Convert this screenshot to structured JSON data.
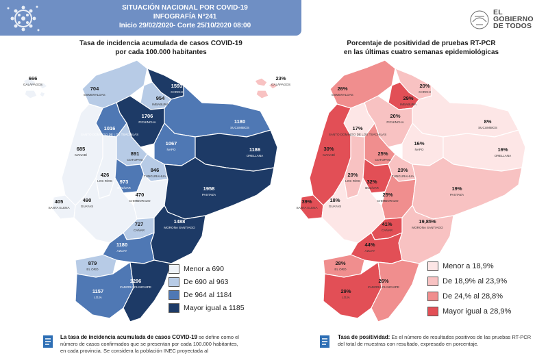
{
  "header": {
    "line1": "SITUACIÓN NACIONAL POR  COVID-19",
    "line2": "INFOGRAFÍA N°241",
    "line3": "Inicio 29/02/2020- Corte 25/10/2020 08:00"
  },
  "logo": {
    "line1": "EL",
    "line2": "GOBIERNO",
    "line3": "DE TODOS"
  },
  "left_map": {
    "title_line1": "Tasa de incidencia acumulada de casos COVID-19",
    "title_line2": "por cada 100.000 habitantes",
    "legend": [
      {
        "label": "Menor a 690",
        "color": "#eef2f8"
      },
      {
        "label": "De 690 al 963",
        "color": "#b7cbe6"
      },
      {
        "label": "De 964 al 1184",
        "color": "#4f78b4"
      },
      {
        "label": "Mayor igual a 1185",
        "color": "#1d3a66"
      }
    ],
    "regions": [
      {
        "name": "GALÁPAGOS",
        "value": "666"
      },
      {
        "name": "ESMERALDAS",
        "value": "704"
      },
      {
        "name": "CARCHI",
        "value": "1593"
      },
      {
        "name": "IMBABURA",
        "value": "954"
      },
      {
        "name": "PICHINCHA",
        "value": "1706"
      },
      {
        "name": "SANTO DOMINGO DE LOS TSÁCHILAS",
        "value": "1016"
      },
      {
        "name": "SUCUMBIOS",
        "value": "1180"
      },
      {
        "name": "MANABÍ",
        "value": "685"
      },
      {
        "name": "COTOPAXI",
        "value": "891"
      },
      {
        "name": "NAPO",
        "value": "1067"
      },
      {
        "name": "ORELLANA",
        "value": "1186"
      },
      {
        "name": "LOS RÍOS",
        "value": "426"
      },
      {
        "name": "TUNGURAHUA",
        "value": "846"
      },
      {
        "name": "BOLÍVAR",
        "value": "973"
      },
      {
        "name": "CHIMBORAZO",
        "value": "470"
      },
      {
        "name": "PASTAZA",
        "value": "1958"
      },
      {
        "name": "SANTA ELENA",
        "value": "405"
      },
      {
        "name": "GUAYAS",
        "value": "490"
      },
      {
        "name": "CAÑAR",
        "value": "727"
      },
      {
        "name": "MORONA SANTIAGO",
        "value": "1488"
      },
      {
        "name": "AZUAY",
        "value": "1180"
      },
      {
        "name": "EL ORO",
        "value": "879"
      },
      {
        "name": "LOJA",
        "value": "1157"
      },
      {
        "name": "ZAMORA CHINCHIPE",
        "value": "1296"
      }
    ]
  },
  "right_map": {
    "title_line1": "Porcentaje de positividad de pruebas RT-PCR",
    "title_line2": "en las últimas cuatro semanas epidemiológicas",
    "legend": [
      {
        "label": "Menor a 18,9%",
        "color": "#fde6e6"
      },
      {
        "label": "De 18,9% al 23,9%",
        "color": "#f8c2c2"
      },
      {
        "label": "De 24,% al 28,8%",
        "color": "#f08e8e"
      },
      {
        "label": "Mayor igual a 28,9%",
        "color": "#e24f56"
      }
    ],
    "regions": [
      {
        "name": "GALÁPAGOS",
        "value": "23%"
      },
      {
        "name": "ESMERALDAS",
        "value": "26%"
      },
      {
        "name": "CARCHI",
        "value": "20%"
      },
      {
        "name": "IMBABURA",
        "value": "29%"
      },
      {
        "name": "PICHINCHA",
        "value": "20%"
      },
      {
        "name": "SANTO DOMINGO DE LOS TSÁCHILAS",
        "value": "17%"
      },
      {
        "name": "SUCUMBIOS",
        "value": "8%"
      },
      {
        "name": "MANABÍ",
        "value": "30%"
      },
      {
        "name": "COTOPAXI",
        "value": "25%"
      },
      {
        "name": "NAPO",
        "value": "16%"
      },
      {
        "name": "ORELLANA",
        "value": "16%"
      },
      {
        "name": "LOS RÍOS",
        "value": "20%"
      },
      {
        "name": "TUNGURAHUA",
        "value": "20%"
      },
      {
        "name": "BOLÍVAR",
        "value": "32%"
      },
      {
        "name": "CHIMBORAZO",
        "value": "25%"
      },
      {
        "name": "PASTAZA",
        "value": "19%"
      },
      {
        "name": "SANTA ELENA",
        "value": "39%"
      },
      {
        "name": "GUAYAS",
        "value": "18%"
      },
      {
        "name": "CAÑAR",
        "value": "41%"
      },
      {
        "name": "MORONA SANTIAGO",
        "value": "19,85%"
      },
      {
        "name": "AZUAY",
        "value": "44%"
      },
      {
        "name": "EL ORO",
        "value": "28%"
      },
      {
        "name": "LOJA",
        "value": "29%"
      },
      {
        "name": "ZAMORA CHINCHIPE",
        "value": "26%"
      }
    ]
  },
  "footer_left": {
    "bold": "La tasa de incidencia acumulada de casos COVID-19",
    "text": " se define como el número de casos confirmados que se presentan por cada 100.000 habitantes, en cada provincia. Se considera la población INEC proyectada al"
  },
  "footer_right": {
    "bold": "Tasa de positividad:",
    "text": " Es el número de resultados positivos de las pruebas RT-PCR del total de muestras con resultado, expresado en porcentaje."
  }
}
